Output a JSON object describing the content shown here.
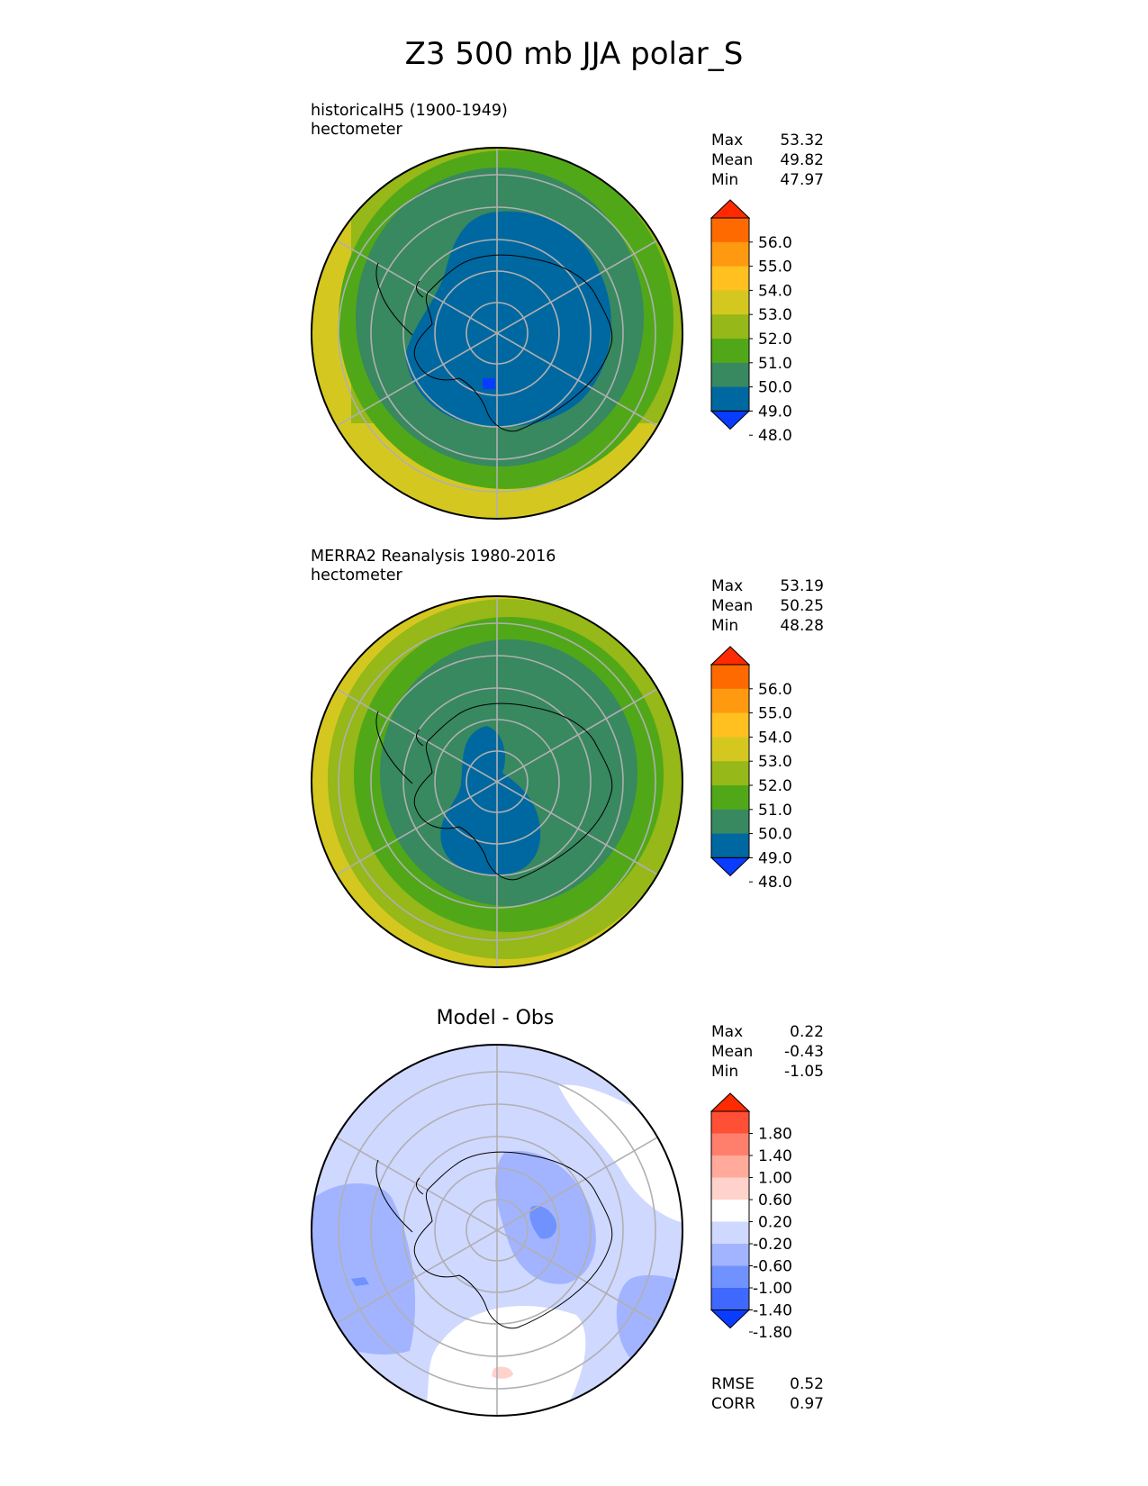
{
  "figure": {
    "title": "Z3 500 mb JJA polar_S",
    "panels": [
      {
        "name": "model",
        "title": "historicalH5 (1900-1949)",
        "units": "hectometer",
        "stats": {
          "max_label": "Max",
          "max": "53.32",
          "mean_label": "Mean",
          "mean": "49.82",
          "min_label": "Min",
          "min": "47.97"
        }
      },
      {
        "name": "obs",
        "title": "MERRA2 Reanalysis 1980-2016",
        "units": "hectometer",
        "stats": {
          "max_label": "Max",
          "max": "53.19",
          "mean_label": "Mean",
          "mean": "50.25",
          "min_label": "Min",
          "min": "48.28"
        }
      },
      {
        "name": "diff",
        "title": "Model - Obs",
        "stats": {
          "max_label": "Max",
          "max": "0.22",
          "mean_label": "Mean",
          "mean": "-0.43",
          "min_label": "Min",
          "min": "-1.05"
        },
        "metrics": {
          "rmse_label": "RMSE",
          "rmse": "0.52",
          "corr_label": "CORR",
          "corr": "0.97"
        }
      }
    ]
  },
  "colorbars": {
    "field": {
      "ticks": [
        "56.0",
        "55.0",
        "54.0",
        "53.0",
        "52.0",
        "51.0",
        "50.0",
        "49.0",
        "48.0"
      ],
      "colors_top_to_bottom": [
        "#ff2a00",
        "#ff6a00",
        "#ff9a10",
        "#ffc020",
        "#d4c820",
        "#96b818",
        "#50a818",
        "#388860",
        "#0068a0",
        "#0a3cff"
      ]
    },
    "diff": {
      "ticks": [
        "1.80",
        "1.40",
        "1.00",
        "0.60",
        "0.20",
        "-0.20",
        "-0.60",
        "-1.00",
        "-1.40",
        "-1.80"
      ],
      "colors_top_to_bottom": [
        "#ff2a00",
        "#ff5035",
        "#ff7f6c",
        "#ffaa9a",
        "#ffd2cc",
        "#ffffff",
        "#cfd8ff",
        "#a2b4ff",
        "#7092ff",
        "#3f68ff",
        "#0a3cff"
      ]
    }
  }
}
